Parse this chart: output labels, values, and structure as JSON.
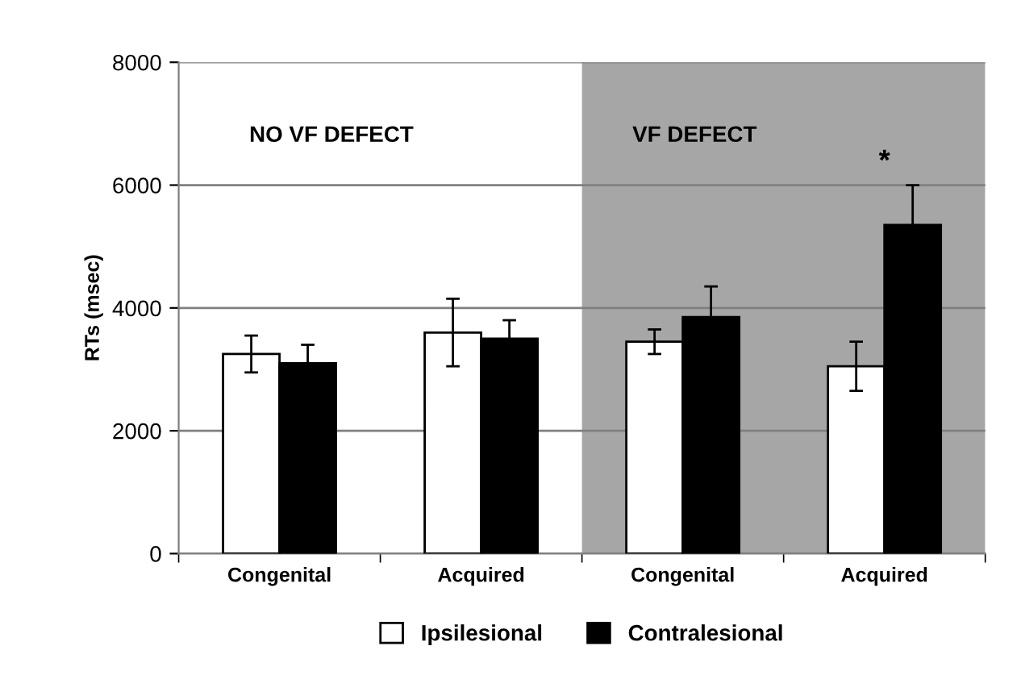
{
  "chart_data": {
    "type": "bar",
    "ylabel": "RTs (msec)",
    "categories": [
      "Congenital",
      "Acquired",
      "Congenital",
      "Acquired"
    ],
    "series": [
      {
        "name": "Ipsilesional",
        "color": "#ffffff",
        "values": [
          3250,
          3600,
          3450,
          3050
        ],
        "errors": [
          300,
          550,
          200,
          400
        ]
      },
      {
        "name": "Contralesional",
        "color": "#000000",
        "values": [
          3100,
          3500,
          3850,
          5350
        ],
        "errors": [
          300,
          300,
          500,
          650
        ]
      }
    ],
    "ylim": [
      0,
      8000
    ],
    "yticks": [
      0,
      2000,
      4000,
      6000,
      8000
    ],
    "grid": "y",
    "legend": "bottom",
    "annotations": [
      "NO VF DEFECT",
      "VF DEFECT",
      "*"
    ]
  }
}
